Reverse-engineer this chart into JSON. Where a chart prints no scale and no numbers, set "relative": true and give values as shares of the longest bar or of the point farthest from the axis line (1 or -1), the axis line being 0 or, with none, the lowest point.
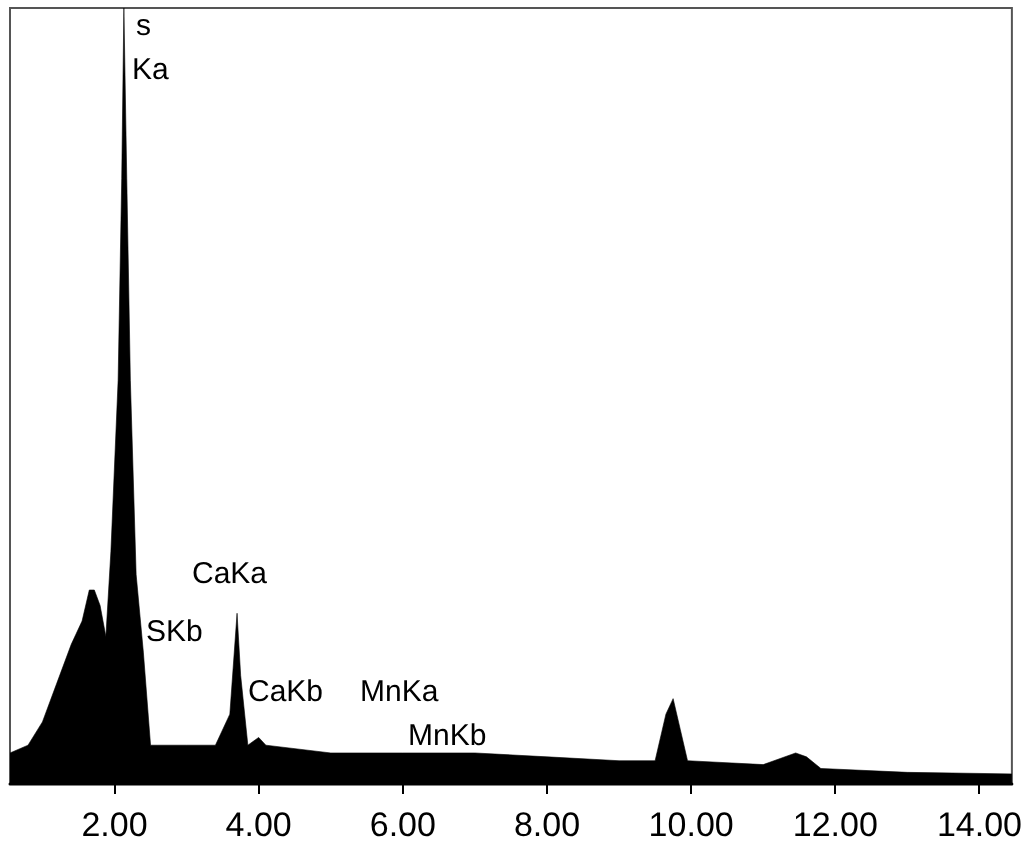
{
  "chart_data": {
    "type": "area",
    "relative": true,
    "x": [
      0.55,
      0.8,
      1.0,
      1.2,
      1.4,
      1.55,
      1.65,
      1.72,
      1.8,
      1.88,
      1.95,
      2.05,
      2.1,
      2.13,
      2.17,
      2.22,
      2.3,
      2.4,
      2.5,
      2.6,
      3.0,
      3.4,
      3.6,
      3.7,
      3.75,
      3.85,
      4.0,
      4.1,
      5.0,
      6.0,
      7.0,
      8.0,
      9.0,
      9.5,
      9.65,
      9.75,
      9.85,
      9.95,
      11.0,
      11.45,
      11.6,
      11.8,
      13.0,
      14.45
    ],
    "series": [
      {
        "color": "#000000",
        "values": [
          0.04,
          0.05,
          0.08,
          0.13,
          0.18,
          0.21,
          0.25,
          0.25,
          0.23,
          0.19,
          0.3,
          0.52,
          0.78,
          1.0,
          0.78,
          0.52,
          0.27,
          0.17,
          0.05,
          0.05,
          0.05,
          0.05,
          0.09,
          0.22,
          0.14,
          0.05,
          0.06,
          0.05,
          0.04,
          0.04,
          0.04,
          0.035,
          0.03,
          0.03,
          0.09,
          0.11,
          0.07,
          0.03,
          0.025,
          0.04,
          0.035,
          0.02,
          0.015,
          0.013
        ]
      }
    ],
    "xlim": [
      0.55,
      14.45
    ],
    "xticks": [
      {
        "value": 2,
        "label": "2.00"
      },
      {
        "value": 4,
        "label": "4.00"
      },
      {
        "value": 6,
        "label": "6.00"
      },
      {
        "value": 8,
        "label": "8.00"
      },
      {
        "value": 10,
        "label": "10.00"
      },
      {
        "value": 12,
        "label": "12.00"
      },
      {
        "value": 14,
        "label": "14.00"
      }
    ],
    "grid": false,
    "annotations": [
      "s",
      "Ka",
      "CaKa",
      "SKb",
      "CaKb",
      "MnKa",
      "MnKb"
    ]
  }
}
